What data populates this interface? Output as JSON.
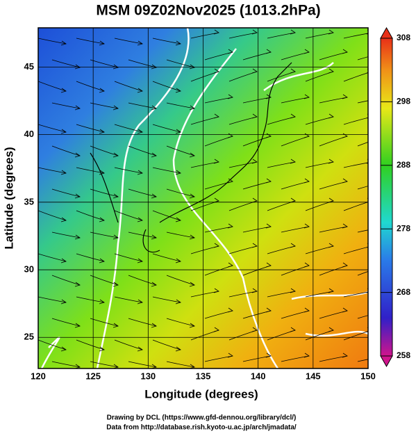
{
  "title": "MSM 09Z02Nov2025 (1013.2hPa)",
  "x_axis": {
    "label": "Longitude (degrees)",
    "lim": [
      120,
      150
    ],
    "ticks": [
      120,
      125,
      130,
      135,
      140,
      145,
      150
    ]
  },
  "y_axis": {
    "label": "Latitude  (degrees)",
    "lim": [
      22.7,
      47.9
    ],
    "ticks": [
      25,
      30,
      35,
      40,
      45
    ]
  },
  "colorbar": {
    "lim": [
      258,
      308
    ],
    "ticks": [
      258,
      268,
      278,
      288,
      298,
      308
    ]
  },
  "credits": [
    "Drawing by DCL (https://www.gfd-dennou.org/library/dcl/)",
    "Data from http://database.rish.kyoto-u.ac.jp/arch/jmadata/"
  ]
}
